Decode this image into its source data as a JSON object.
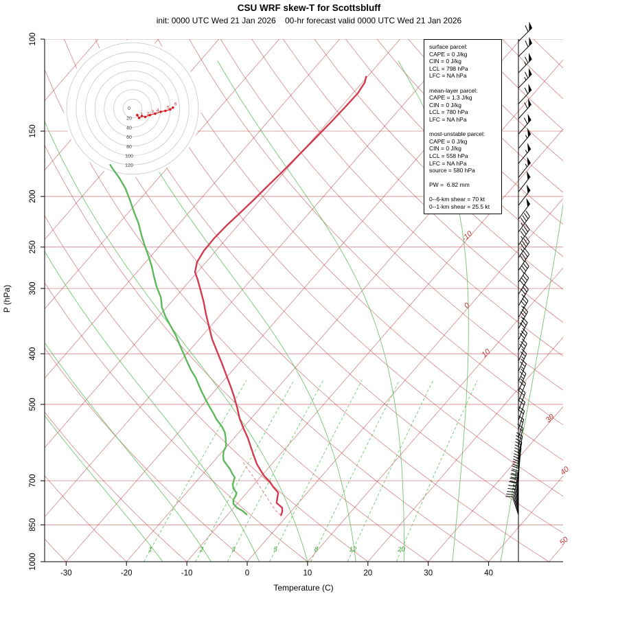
{
  "title": "CSU WRF skew-T for Scottsbluff",
  "subtitle": "init: 0000 UTC Wed 21 Jan 2026    00-hr forecast valid 0000 UTC Wed 21 Jan 2026",
  "axes": {
    "x_label": "Temperature (C)",
    "y_label": "P (hPa)",
    "x_ticks": [
      -30,
      -20,
      -10,
      0,
      10,
      20,
      30,
      40
    ],
    "p_ticks": [
      100,
      150,
      200,
      250,
      300,
      400,
      500,
      700,
      850,
      1000
    ]
  },
  "style": {
    "temp_color": "#d23b4f",
    "dewpoint_color": "#5db85d",
    "parcel_color": "#e89aa0",
    "isotherm_color": "#b22222",
    "moist_color": "#4db84d",
    "mixing_color": "#55c055",
    "barb_color": "#000000",
    "hodo_ring_color": "#c8c8c8",
    "hodo_trace_color": "#d42020",
    "isotherm_label_color": "#c03a3a",
    "mixing_label_color": "#3aa83a"
  },
  "isotherm_labels": [
    {
      "t": -10,
      "p": 240
    },
    {
      "t": 0,
      "p": 326
    },
    {
      "t": 10,
      "p": 402
    },
    {
      "t": 30,
      "p": 536
    },
    {
      "t": 40,
      "p": 675
    },
    {
      "t": 50,
      "p": 920
    }
  ],
  "mixing_ratio_labels": [
    1,
    2,
    3,
    5,
    8,
    12,
    20
  ],
  "info_box": {
    "sections": [
      {
        "lines": [
          "surface parcel:",
          "CAPE = 0 J/kg",
          "CIN = 0 J/kg",
          "LCL = 798 hPa",
          "LFC = NA hPa"
        ]
      },
      {
        "lines": [
          "mean-layer parcel:",
          "CAPE = 1.3 J/kg",
          "CIN = 0 J/kg",
          "LCL = 780 hPa",
          "LFC = NA hPa"
        ]
      },
      {
        "lines": [
          "most-unstable parcel:",
          "CAPE = 0 J/kg",
          "CIN = 0 J/kg",
          "LCL = 558 hPa",
          "LFC = NA hPa",
          "source = 580 hPa"
        ]
      },
      {
        "lines": [
          "PW =  6.82 mm"
        ]
      },
      {
        "lines": [
          "0--6-km shear = 70 kt",
          "0--1-km shear = 25.5 kt"
        ]
      }
    ]
  },
  "hodograph": {
    "center_label": "0",
    "ring_labels": [
      20,
      40,
      60,
      80,
      100,
      120
    ],
    "units": "kt"
  },
  "chart_data": {
    "type": "line",
    "title": "CSU WRF skew-T for Scottsbluff",
    "x_axis": {
      "label": "Temperature (C)",
      "ticks": [
        -30,
        -20,
        -10,
        0,
        10,
        20,
        30,
        40
      ]
    },
    "y_axis": {
      "label": "P (hPa)",
      "scale": "log",
      "range": [
        1000,
        100
      ],
      "ticks": [
        100,
        150,
        200,
        250,
        300,
        400,
        500,
        700,
        850,
        1000
      ]
    },
    "series": [
      {
        "name": "temperature",
        "units": [
          "hPa",
          "C"
        ],
        "points": [
          [
            815,
            -1.1
          ],
          [
            802,
            -1.4
          ],
          [
            788,
            -2.0
          ],
          [
            772,
            -3.6
          ],
          [
            755,
            -4.2
          ],
          [
            738,
            -4.8
          ],
          [
            720,
            -6.4
          ],
          [
            703,
            -7.8
          ],
          [
            686,
            -9.5
          ],
          [
            668,
            -11.0
          ],
          [
            650,
            -12.5
          ],
          [
            628,
            -14.1
          ],
          [
            605,
            -15.8
          ],
          [
            580,
            -17.7
          ],
          [
            556,
            -19.8
          ],
          [
            532,
            -21.9
          ],
          [
            508,
            -23.8
          ],
          [
            485,
            -25.8
          ],
          [
            462,
            -28.0
          ],
          [
            440,
            -30.3
          ],
          [
            418,
            -32.7
          ],
          [
            396,
            -35.3
          ],
          [
            375,
            -37.9
          ],
          [
            355,
            -40.2
          ],
          [
            336,
            -42.5
          ],
          [
            318,
            -44.7
          ],
          [
            302,
            -46.9
          ],
          [
            289,
            -48.8
          ],
          [
            279,
            -50.4
          ],
          [
            267,
            -51.5
          ],
          [
            254,
            -52.0
          ],
          [
            241,
            -52.1
          ],
          [
            228,
            -51.9
          ],
          [
            216,
            -51.5
          ],
          [
            204,
            -51.1
          ],
          [
            192,
            -50.8
          ],
          [
            180,
            -50.4
          ],
          [
            168,
            -50.1
          ],
          [
            156,
            -49.8
          ],
          [
            145,
            -49.5
          ],
          [
            135,
            -49.3
          ],
          [
            127,
            -49.2
          ],
          [
            121,
            -49.6
          ],
          [
            118,
            -50.2
          ]
        ]
      },
      {
        "name": "dewpoint",
        "units": [
          "hPa",
          "C"
        ],
        "points": [
          [
            812,
            -6.9
          ],
          [
            800,
            -8.0
          ],
          [
            788,
            -9.5
          ],
          [
            775,
            -10.6
          ],
          [
            762,
            -11.2
          ],
          [
            748,
            -11.4
          ],
          [
            738,
            -11.7
          ],
          [
            725,
            -12.8
          ],
          [
            712,
            -13.5
          ],
          [
            700,
            -13.9
          ],
          [
            690,
            -14.2
          ],
          [
            678,
            -15.2
          ],
          [
            665,
            -16.2
          ],
          [
            652,
            -17.4
          ],
          [
            640,
            -18.5
          ],
          [
            628,
            -19.2
          ],
          [
            615,
            -19.8
          ],
          [
            602,
            -20.1
          ],
          [
            590,
            -20.8
          ],
          [
            578,
            -21.5
          ],
          [
            565,
            -22.4
          ],
          [
            550,
            -23.8
          ],
          [
            535,
            -25.5
          ],
          [
            520,
            -27.0
          ],
          [
            505,
            -28.6
          ],
          [
            490,
            -30.2
          ],
          [
            475,
            -31.8
          ],
          [
            460,
            -33.4
          ],
          [
            445,
            -35.0
          ],
          [
            430,
            -36.9
          ],
          [
            415,
            -38.7
          ],
          [
            400,
            -40.5
          ],
          [
            385,
            -42.4
          ],
          [
            370,
            -44.3
          ],
          [
            355,
            -46.5
          ],
          [
            340,
            -48.8
          ],
          [
            326,
            -50.8
          ],
          [
            312,
            -52.4
          ],
          [
            298,
            -54.6
          ],
          [
            285,
            -56.5
          ],
          [
            272,
            -58.4
          ],
          [
            259,
            -60.6
          ],
          [
            247,
            -62.8
          ],
          [
            236,
            -64.8
          ],
          [
            225,
            -66.8
          ],
          [
            214,
            -69.2
          ],
          [
            203,
            -71.6
          ],
          [
            193,
            -74.0
          ],
          [
            184,
            -76.6
          ],
          [
            178,
            -78.6
          ],
          [
            174,
            -79.9
          ]
        ]
      },
      {
        "name": "surface_parcel",
        "units": [
          "hPa",
          "C"
        ],
        "points": [
          [
            815,
            -1.1
          ],
          [
            798,
            -2.7
          ],
          [
            780,
            -4.0
          ],
          [
            760,
            -5.5
          ],
          [
            740,
            -7.0
          ],
          [
            720,
            -8.6
          ],
          [
            700,
            -10.2
          ],
          [
            680,
            -11.9
          ],
          [
            660,
            -13.7
          ],
          [
            640,
            -15.5
          ]
        ]
      }
    ],
    "wind_barbs": [
      [
        101,
        60,
        295
      ],
      [
        108,
        60,
        295
      ],
      [
        116,
        65,
        294
      ],
      [
        124,
        65,
        294
      ],
      [
        133,
        60,
        293
      ],
      [
        142,
        60,
        292
      ],
      [
        152,
        60,
        291
      ],
      [
        162,
        55,
        290
      ],
      [
        173,
        55,
        290
      ],
      [
        184,
        55,
        289
      ],
      [
        196,
        50,
        288
      ],
      [
        208,
        50,
        288
      ],
      [
        221,
        50,
        287
      ],
      [
        234,
        45,
        286
      ],
      [
        248,
        45,
        285
      ],
      [
        262,
        45,
        285
      ],
      [
        277,
        40,
        284
      ],
      [
        292,
        40,
        283
      ],
      [
        308,
        40,
        282
      ],
      [
        324,
        35,
        281
      ],
      [
        341,
        35,
        280
      ],
      [
        358,
        35,
        279
      ],
      [
        376,
        30,
        278
      ],
      [
        394,
        30,
        277
      ],
      [
        413,
        30,
        276
      ],
      [
        432,
        25,
        275
      ],
      [
        452,
        25,
        274
      ],
      [
        472,
        25,
        273
      ],
      [
        493,
        20,
        272
      ],
      [
        514,
        20,
        271
      ],
      [
        536,
        20,
        270
      ],
      [
        558,
        20,
        268
      ],
      [
        580,
        15,
        266
      ],
      [
        602,
        15,
        264
      ],
      [
        625,
        20,
        262
      ],
      [
        642,
        20,
        260
      ],
      [
        659,
        25,
        258
      ],
      [
        676,
        25,
        256
      ],
      [
        692,
        20,
        254
      ],
      [
        707,
        20,
        252
      ],
      [
        721,
        25,
        250
      ],
      [
        734,
        25,
        248
      ],
      [
        746,
        20,
        246
      ],
      [
        758,
        20,
        244
      ],
      [
        769,
        15,
        242
      ],
      [
        780,
        15,
        240
      ],
      [
        790,
        15,
        238
      ],
      [
        799,
        10,
        236
      ],
      [
        807,
        10,
        234
      ],
      [
        814,
        10,
        232
      ]
    ],
    "hodograph_trace": [
      [
        10,
        -14,
        ""
      ],
      [
        14,
        -20,
        "1"
      ],
      [
        20,
        -16,
        ""
      ],
      [
        27,
        -18,
        "2"
      ],
      [
        37,
        -14,
        "3"
      ],
      [
        48,
        -11,
        "4"
      ],
      [
        60,
        -7,
        ""
      ],
      [
        70,
        -5,
        "5"
      ],
      [
        80,
        -2,
        ""
      ],
      [
        86,
        2,
        "6"
      ]
    ]
  }
}
